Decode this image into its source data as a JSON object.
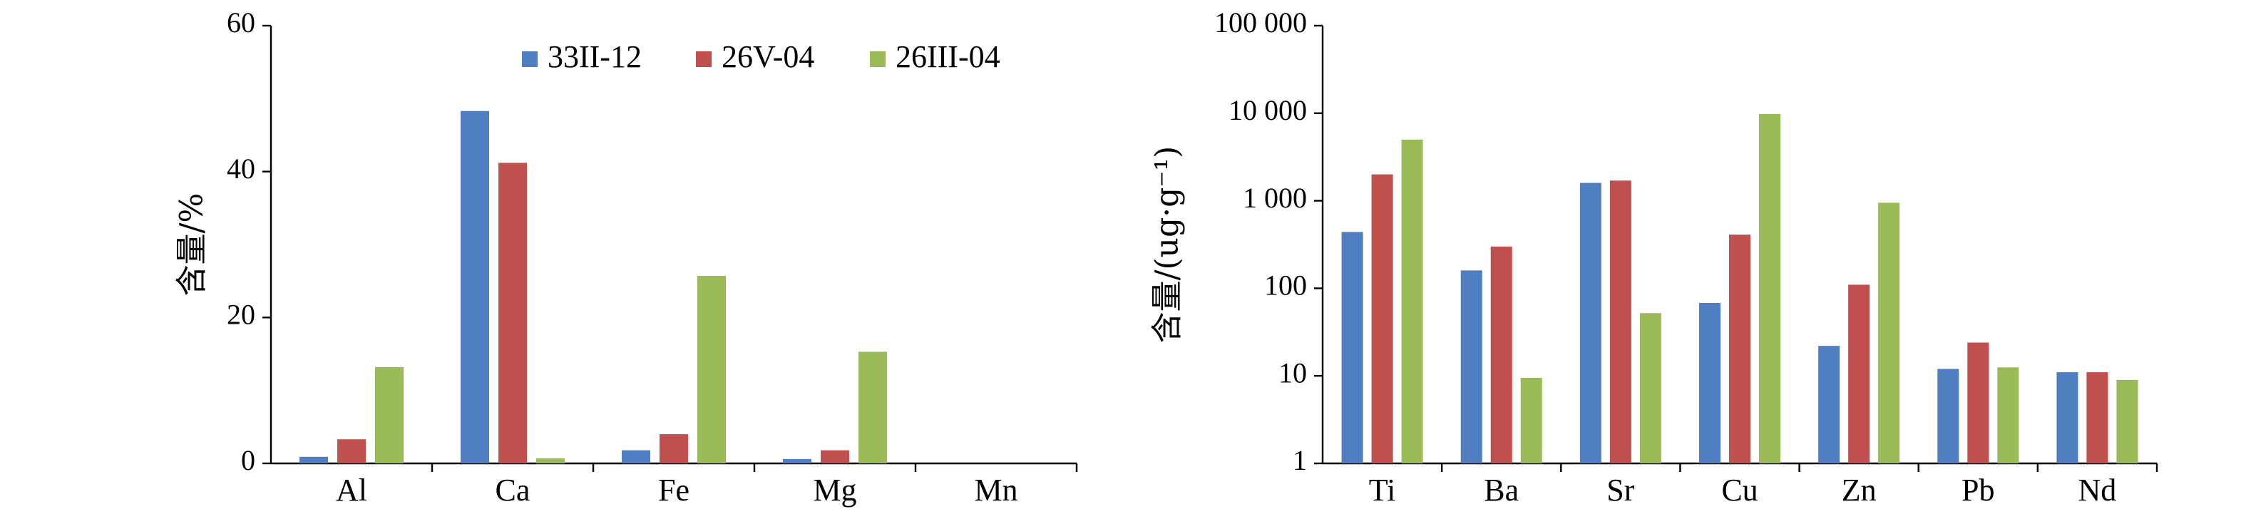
{
  "chart_data": [
    {
      "type": "bar",
      "categories": [
        "Al",
        "Ca",
        "Fe",
        "Mg",
        "Mn"
      ],
      "series": [
        {
          "name": "33II-12",
          "color": "#4F7EC1",
          "values": [
            0.9,
            48.3,
            1.8,
            0.6,
            0
          ]
        },
        {
          "name": "26V-04",
          "color": "#C0504D",
          "values": [
            3.3,
            41.2,
            4.0,
            1.8,
            0
          ]
        },
        {
          "name": "26III-04",
          "color": "#9BBB59",
          "values": [
            13.2,
            0.7,
            25.7,
            15.3,
            0
          ]
        }
      ],
      "ylabel": "含量/%",
      "ylim": [
        0,
        60
      ],
      "yticks": [
        0,
        20,
        40,
        60
      ],
      "legend": "top",
      "grid": false
    },
    {
      "type": "bar",
      "categories": [
        "Ti",
        "Ba",
        "Sr",
        "Cu",
        "Zn",
        "Pb",
        "Nd"
      ],
      "series": [
        {
          "name": "33II-12",
          "color": "#4F7EC1",
          "values": [
            440,
            160,
            1600,
            68,
            22,
            12,
            11
          ]
        },
        {
          "name": "26V-04",
          "color": "#C0504D",
          "values": [
            2000,
            300,
            1700,
            410,
            110,
            24,
            11
          ]
        },
        {
          "name": "26III-04",
          "color": "#9BBB59",
          "values": [
            5000,
            9.5,
            52,
            9800,
            950,
            12.5,
            9
          ]
        }
      ],
      "ylabel": "含量/(ug·g⁻¹)",
      "yscale": "log",
      "ylim": [
        1,
        100000
      ],
      "yticks": [
        1,
        10,
        100,
        1000,
        10000,
        100000
      ],
      "yticklabels": [
        "1",
        "10",
        "100",
        "1 000",
        "10 000",
        "100 000"
      ],
      "grid": false
    }
  ]
}
